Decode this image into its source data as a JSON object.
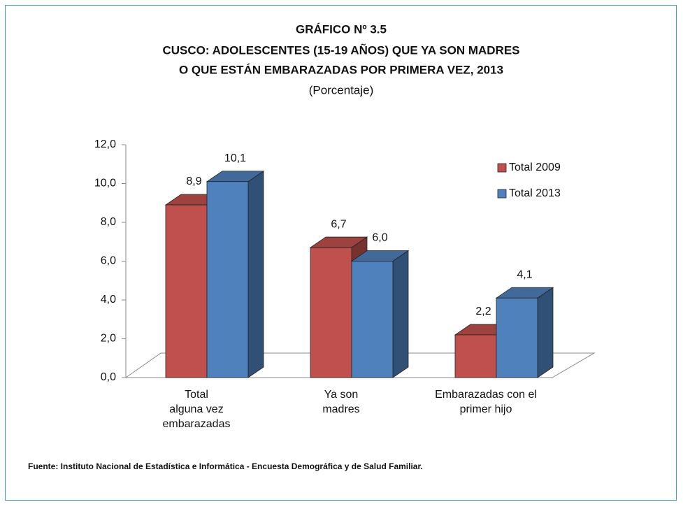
{
  "chart_data": {
    "type": "bar3d",
    "title": "GRÁFICO Nº 3.5",
    "title_lines": [
      "CUSCO: ADOLESCENTES (15-19 AÑOS) QUE YA SON MADRES",
      "O QUE ESTÁN EMBARAZADAS POR PRIMERA VEZ, 2013"
    ],
    "subtitle": "(Porcentaje)",
    "categories": [
      "Total\nalguna vez\nembarazadas",
      "Ya son\nmadres",
      "Embarazadas con el\nprimer hijo"
    ],
    "series": [
      {
        "name": "Total 2009",
        "color": "#c0504d",
        "values": [
          8.9,
          6.7,
          2.2
        ],
        "value_labels": [
          "8,9",
          "6,7",
          "2,2"
        ]
      },
      {
        "name": "Total 2013",
        "color": "#4f81bd",
        "values": [
          10.1,
          6.0,
          4.1
        ],
        "value_labels": [
          "10,1",
          "6,0",
          "4,1"
        ]
      }
    ],
    "ylim": [
      0,
      12
    ],
    "yticks": [
      {
        "value": 0,
        "label": "0,0"
      },
      {
        "value": 2,
        "label": "2,0"
      },
      {
        "value": 4,
        "label": "4,0"
      },
      {
        "value": 6,
        "label": "6,0"
      },
      {
        "value": 8,
        "label": "8,0"
      },
      {
        "value": 10,
        "label": "10,0"
      },
      {
        "value": 12,
        "label": "12,0"
      }
    ],
    "legend": "upper right",
    "source": "Fuente: Instituto Nacional de Estadística e Informática - Encuesta Demográfica y de Salud Familiar."
  }
}
